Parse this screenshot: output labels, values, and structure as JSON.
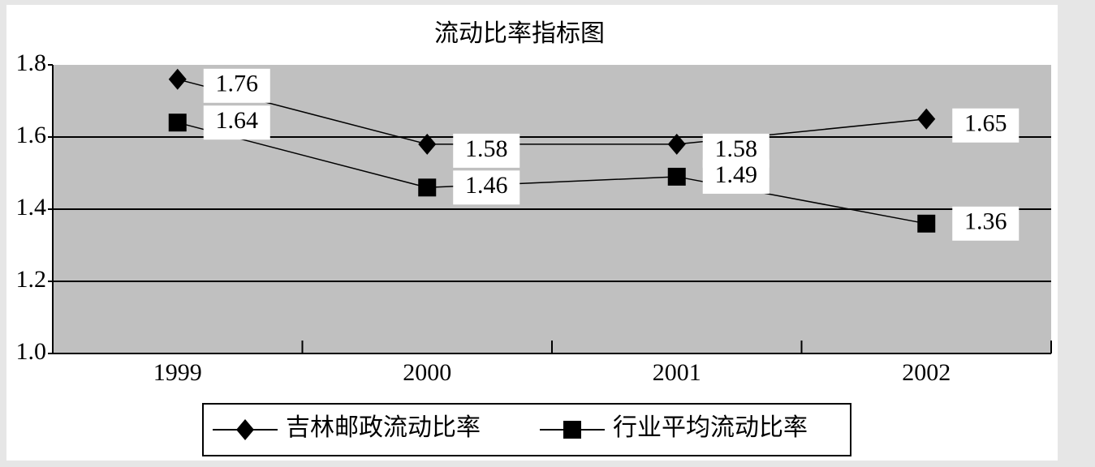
{
  "chart_data": {
    "type": "line",
    "title": "流动比率指标图",
    "categories": [
      "1999",
      "2000",
      "2001",
      "2002"
    ],
    "series": [
      {
        "name": "吉林邮政流动比率",
        "color": "#000000",
        "marker": "diamond",
        "values": [
          1.76,
          1.58,
          1.58,
          1.65
        ]
      },
      {
        "name": "行业平均流动比率",
        "color": "#000000",
        "marker": "square",
        "values": [
          1.64,
          1.46,
          1.49,
          1.36
        ]
      }
    ],
    "ylim": [
      1,
      1.8
    ],
    "yticks": [
      {
        "value": 1,
        "label": "1.0"
      },
      1.2,
      1.4,
      1.6,
      1.8
    ],
    "grid": true,
    "plot_background": "#c0c0c0",
    "legend": "bottom"
  }
}
